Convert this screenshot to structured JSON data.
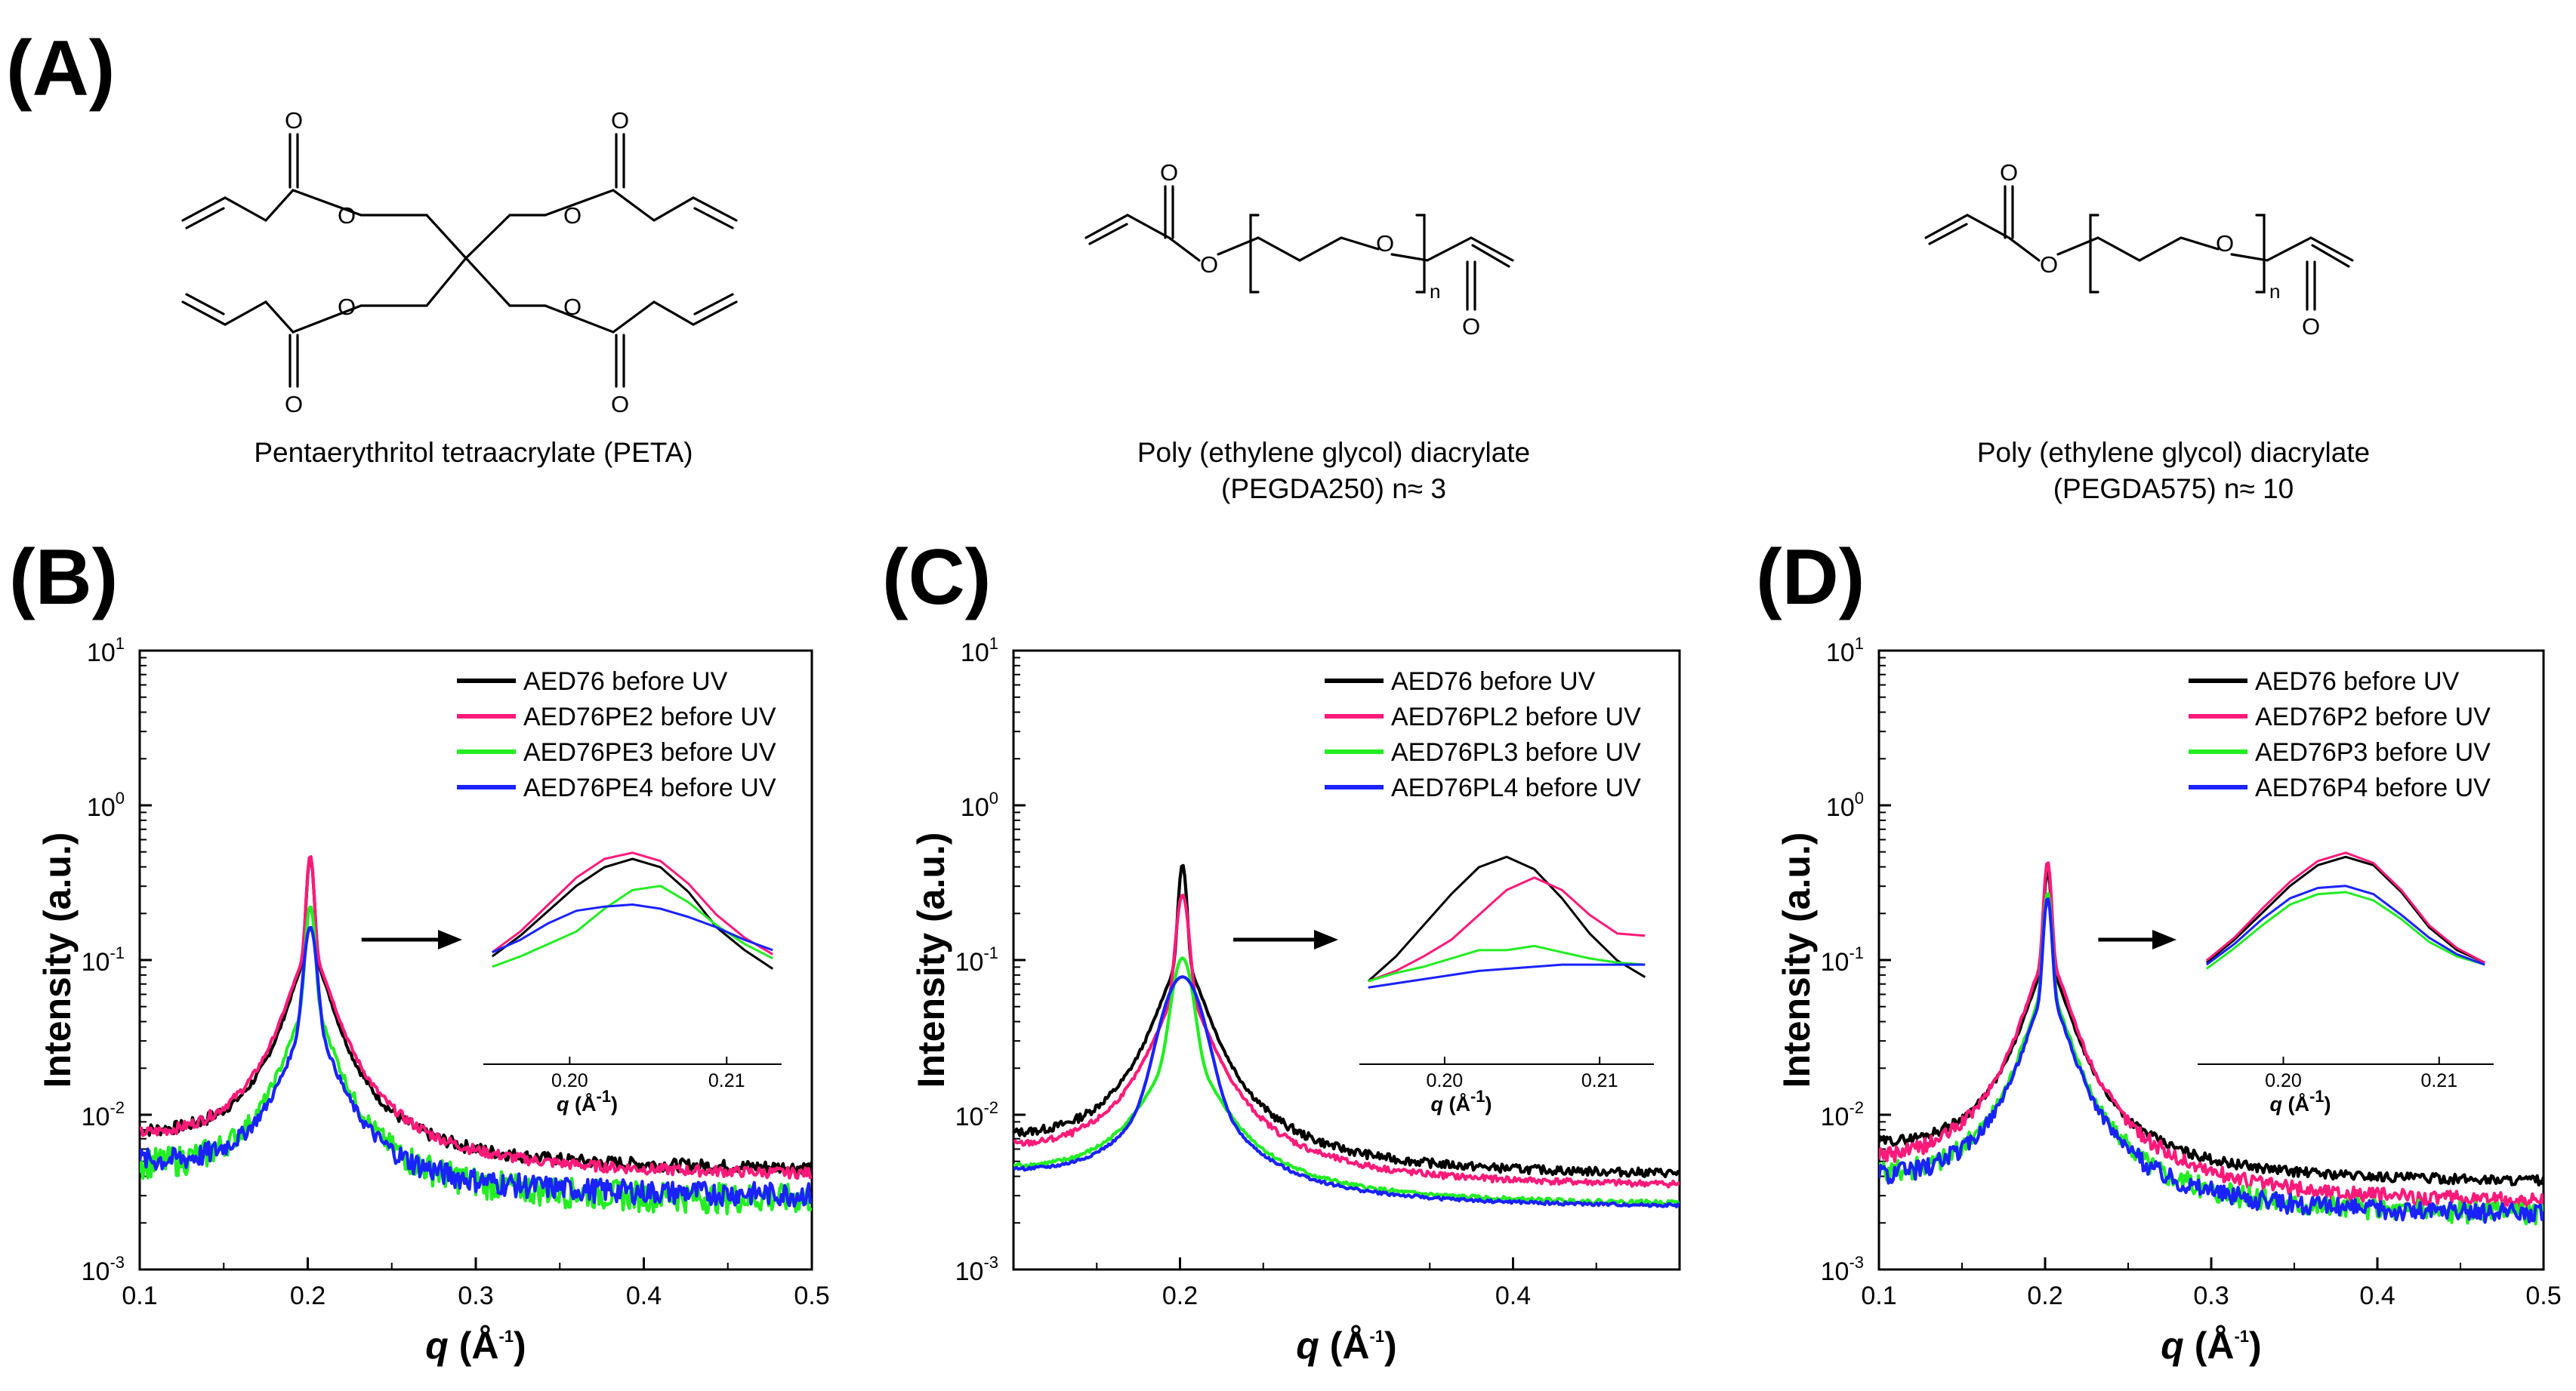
{
  "panel_labels": [
    "(A)",
    "(B)",
    "(C)",
    "(D)"
  ],
  "structures": [
    {
      "name": "Pentaerythritol tetraacrylate (PETA)",
      "atoms": [
        "O",
        "O",
        "O",
        "O",
        "O",
        "O",
        "O",
        "O"
      ]
    },
    {
      "name": "Poly (ethylene glycol) diacrylate",
      "detail": "(PEGDA250) n≈ 3",
      "atoms": [
        "O",
        "O",
        "O",
        "O"
      ],
      "subscript": "n"
    },
    {
      "name": "Poly (ethylene glycol) diacrylate",
      "detail": "(PEGDA575) n≈ 10",
      "atoms": [
        "O",
        "O",
        "O",
        "O"
      ],
      "subscript": "n"
    }
  ],
  "colors": {
    "black": "#000000",
    "pink": "#ff1a7a",
    "green": "#22ee22",
    "blue": "#1a22ff"
  },
  "chart_data": [
    {
      "panel": "(B)",
      "type": "line",
      "title": "",
      "xlabel_sym": "q",
      "xlabel_unit": "(Å",
      "xlabel_exp": "-1",
      "xlabel_close": ")",
      "ylabel": "Intensity (a.u.)",
      "yscale": "log",
      "xlim": [
        0.1,
        0.5
      ],
      "ylim": [
        0.001,
        10
      ],
      "xticks": [
        0.1,
        0.2,
        0.3,
        0.4,
        0.5
      ],
      "xtick_labels": [
        "0.1",
        "0.2",
        "0.3",
        "0.4",
        "0.5"
      ],
      "ytick_bases": [
        "10",
        "10",
        "10",
        "10",
        "10"
      ],
      "ytick_exps": [
        "-3",
        "-2",
        "-1",
        "0",
        "1"
      ],
      "legend": "top-right",
      "series": [
        {
          "name": "AED76 before UV",
          "color": "#000000",
          "peak": 0.46,
          "bg": 0.0044,
          "hw": 0.012,
          "pw": 0.0018,
          "noise": 0.12
        },
        {
          "name": "AED76PE2 before UV",
          "color": "#ff1a7a",
          "peak": 0.47,
          "bg": 0.004,
          "hw": 0.013,
          "pw": 0.0018,
          "noise": 0.1
        },
        {
          "name": "AED76PE3 before UV",
          "color": "#22ee22",
          "peak": 0.22,
          "bg": 0.0028,
          "hw": 0.013,
          "pw": 0.0022,
          "noise": 0.28
        },
        {
          "name": "AED76PE4 before UV",
          "color": "#1a22ff",
          "peak": 0.16,
          "bg": 0.003,
          "hw": 0.014,
          "pw": 0.003,
          "noise": 0.22
        }
      ],
      "inset": {
        "xlim": [
          0.1945,
          0.2135
        ],
        "xticks": [
          0.2,
          0.21
        ],
        "xtick_labels": [
          "0.20",
          "0.21"
        ],
        "xlabel_sym": "q",
        "xlabel_unit": "(Å",
        "xlabel_exp": "-1",
        "xlabel_close": ")",
        "series": [
          {
            "color": "#000000",
            "y": [
              0.52,
              0.62,
              0.74,
              0.86,
              0.95,
              0.99,
              0.95,
              0.83,
              0.66,
              0.55,
              0.46
            ]
          },
          {
            "color": "#ff1a7a",
            "y": [
              0.54,
              0.64,
              0.77,
              0.9,
              0.99,
              1.02,
              0.98,
              0.87,
              0.72,
              0.61,
              0.53
            ]
          },
          {
            "color": "#22ee22",
            "y": [
              0.47,
              0.52,
              0.58,
              0.64,
              0.75,
              0.84,
              0.86,
              0.78,
              0.67,
              0.58,
              0.51
            ]
          },
          {
            "color": "#1a22ff",
            "y": [
              0.54,
              0.6,
              0.68,
              0.74,
              0.76,
              0.77,
              0.75,
              0.71,
              0.66,
              0.6,
              0.55
            ]
          }
        ]
      }
    },
    {
      "panel": "(C)",
      "type": "line",
      "title": "",
      "xlabel_sym": "q",
      "xlabel_unit": "(Å",
      "xlabel_exp": "-1",
      "xlabel_close": ")",
      "ylabel": "Intensity (a.u.)",
      "yscale": "log",
      "xlim": [
        0.1,
        0.5
      ],
      "ylim": [
        0.001,
        10
      ],
      "xticks": [
        0.2,
        0.4
      ],
      "xtick_labels": [
        "0.2",
        "0.4"
      ],
      "ytick_bases": [
        "10",
        "10",
        "10",
        "10",
        "10"
      ],
      "ytick_exps": [
        "-3",
        "-2",
        "-1",
        "0",
        "1"
      ],
      "legend": "top-right",
      "series": [
        {
          "name": "AED76 before UV",
          "color": "#000000",
          "peak": 0.41,
          "bg": 0.004,
          "hw": 0.014,
          "pw": 0.002,
          "noise": 0.08
        },
        {
          "name": "AED76PL2 before UV",
          "color": "#ff1a7a",
          "peak": 0.26,
          "bg": 0.0034,
          "hw": 0.016,
          "pw": 0.003,
          "noise": 0.06
        },
        {
          "name": "AED76PL3 before UV",
          "color": "#22ee22",
          "peak": 0.1,
          "bg": 0.0026,
          "hw": 0.02,
          "pw": 0.005,
          "noise": 0.04
        },
        {
          "name": "AED76PL4 before UV",
          "color": "#1a22ff",
          "peak": 0.075,
          "bg": 0.0025,
          "hw": 0.022,
          "pw": 0.01,
          "noise": 0.03
        }
      ],
      "inset": {
        "xlim": [
          0.1945,
          0.2135
        ],
        "xticks": [
          0.2,
          0.21
        ],
        "xtick_labels": [
          "0.20",
          "0.21"
        ],
        "xlabel_sym": "q",
        "xlabel_unit": "(Å",
        "xlabel_exp": "-1",
        "xlabel_close": ")",
        "series": [
          {
            "color": "#000000",
            "y": [
              0.4,
              0.52,
              0.67,
              0.82,
              0.95,
              1.0,
              0.94,
              0.8,
              0.63,
              0.5,
              0.42
            ]
          },
          {
            "color": "#ff1a7a",
            "y": [
              0.4,
              0.45,
              0.52,
              0.6,
              0.72,
              0.84,
              0.9,
              0.84,
              0.72,
              0.63,
              0.62
            ]
          },
          {
            "color": "#22ee22",
            "y": [
              0.4,
              0.44,
              0.47,
              0.51,
              0.55,
              0.55,
              0.57,
              0.54,
              0.51,
              0.49,
              0.48
            ]
          },
          {
            "color": "#1a22ff",
            "y": [
              0.37,
              0.39,
              0.41,
              0.43,
              0.45,
              0.46,
              0.47,
              0.48,
              0.48,
              0.48,
              0.48
            ]
          }
        ]
      }
    },
    {
      "panel": "(D)",
      "type": "line",
      "title": "",
      "xlabel_sym": "q",
      "xlabel_unit": "(Å",
      "xlabel_exp": "-1",
      "xlabel_close": ")",
      "ylabel": "Intensity (a.u.)",
      "yscale": "log",
      "xlim": [
        0.1,
        0.5
      ],
      "ylim": [
        0.001,
        10
      ],
      "xticks": [
        0.1,
        0.2,
        0.3,
        0.4,
        0.5
      ],
      "xtick_labels": [
        "0.1",
        "0.2",
        "0.3",
        "0.4",
        "0.5"
      ],
      "ytick_bases": [
        "10",
        "10",
        "10",
        "10",
        "10"
      ],
      "ytick_exps": [
        "-3",
        "-2",
        "-1",
        "0",
        "1"
      ],
      "legend": "top-right",
      "series": [
        {
          "name": "AED76 before UV",
          "color": "#000000",
          "peak": 0.38,
          "bg": 0.0036,
          "hw": 0.013,
          "pw": 0.0018,
          "noise": 0.09
        },
        {
          "name": "AED76P2 before UV",
          "color": "#ff1a7a",
          "peak": 0.43,
          "bg": 0.0026,
          "hw": 0.013,
          "pw": 0.0018,
          "noise": 0.14
        },
        {
          "name": "AED76P3 before UV",
          "color": "#22ee22",
          "peak": 0.27,
          "bg": 0.0022,
          "hw": 0.013,
          "pw": 0.002,
          "noise": 0.2
        },
        {
          "name": "AED76P4 before UV",
          "color": "#1a22ff",
          "peak": 0.25,
          "bg": 0.0022,
          "hw": 0.013,
          "pw": 0.002,
          "noise": 0.18
        }
      ],
      "inset": {
        "xlim": [
          0.1945,
          0.2135
        ],
        "xticks": [
          0.2,
          0.21
        ],
        "xtick_labels": [
          "0.20",
          "0.21"
        ],
        "xlabel_sym": "q",
        "xlabel_unit": "(Å",
        "xlabel_exp": "-1",
        "xlabel_close": ")",
        "series": [
          {
            "color": "#000000",
            "y": [
              0.49,
              0.6,
              0.73,
              0.86,
              0.96,
              1.0,
              0.96,
              0.83,
              0.66,
              0.55,
              0.49
            ]
          },
          {
            "color": "#ff1a7a",
            "y": [
              0.5,
              0.61,
              0.75,
              0.88,
              0.98,
              1.02,
              0.97,
              0.84,
              0.67,
              0.56,
              0.49
            ]
          },
          {
            "color": "#22ee22",
            "y": [
              0.46,
              0.56,
              0.67,
              0.77,
              0.82,
              0.83,
              0.79,
              0.7,
              0.59,
              0.52,
              0.48
            ]
          },
          {
            "color": "#1a22ff",
            "y": [
              0.48,
              0.58,
              0.7,
              0.8,
              0.85,
              0.86,
              0.82,
              0.72,
              0.61,
              0.53,
              0.48
            ]
          }
        ]
      }
    }
  ]
}
